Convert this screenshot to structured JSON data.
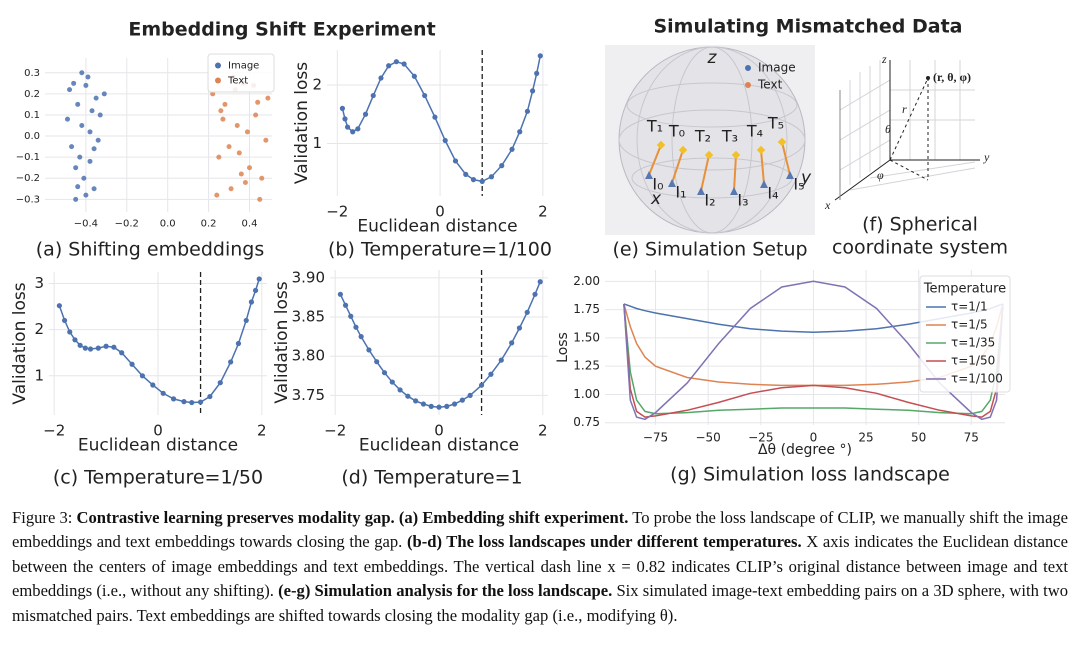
{
  "titles": [
    "Embedding Shift Experiment",
    "Simulating Mismatched Data"
  ],
  "chart_data": [
    {
      "type": "scatter",
      "caption": "(a) Shifting embeddings",
      "legend": "upper right",
      "grid": true,
      "xlim": [
        -0.6,
        0.51
      ],
      "ylim": [
        -0.36,
        0.37
      ],
      "xticks": [
        {
          "value": -0.4,
          "label": "−0.4"
        },
        {
          "value": -0.2,
          "label": "−0.2"
        },
        {
          "value": 0,
          "label": "0.0"
        },
        0.2,
        0.4
      ],
      "yticks": [
        0.3,
        0.2,
        0.1,
        {
          "value": 0,
          "label": "0.0"
        },
        {
          "value": -0.1,
          "label": "−0.1"
        },
        {
          "value": -0.2,
          "label": "−0.2"
        },
        {
          "value": -0.3,
          "label": "−0.3"
        }
      ],
      "series": [
        {
          "name": "Image",
          "color": "#4c72b0",
          "x": [
            -0.48,
            -0.45,
            -0.42,
            -0.39,
            -0.36,
            -0.33,
            -0.47,
            -0.44,
            -0.41,
            -0.38,
            -0.35,
            -0.46,
            -0.43,
            -0.4,
            -0.37,
            -0.34,
            -0.49,
            -0.42,
            -0.38,
            -0.31,
            -0.44,
            -0.4,
            -0.36,
            -0.45
          ],
          "values": [
            0.22,
            -0.15,
            0.05,
            0.28,
            -0.25,
            0.1,
            -0.05,
            0.15,
            -0.2,
            0.02,
            0.18,
            0.25,
            -0.1,
            -0.28,
            0.12,
            -0.02,
            0.08,
            0.3,
            -0.12,
            0.2,
            -0.24,
            0.24,
            -0.06,
            -0.3
          ]
        },
        {
          "name": "Text",
          "color": "#dd8452",
          "x": [
            0.22,
            0.25,
            0.28,
            0.31,
            0.34,
            0.37,
            0.4,
            0.43,
            0.46,
            0.49,
            0.24,
            0.27,
            0.3,
            0.33,
            0.36,
            0.39,
            0.42,
            0.45,
            0.48,
            0.26,
            0.32,
            0.38,
            0.44,
            0.35
          ],
          "values": [
            0.2,
            -0.1,
            0.15,
            -0.25,
            0.05,
            0.25,
            -0.15,
            0.1,
            -0.2,
            0.18,
            -0.28,
            0.08,
            -0.05,
            0.22,
            -0.18,
            0.02,
            0.24,
            -0.3,
            -0.02,
            0.12,
            0.28,
            -0.22,
            0.16,
            -0.08
          ]
        }
      ]
    },
    {
      "type": "line",
      "caption": "(b) Temperature=1/100",
      "markers": true,
      "color": "#4c72b0",
      "grid": true,
      "xlabel": "Euclidean distance",
      "ylabel": "Validation loss",
      "vline": 0.82,
      "xlim": [
        -2.2,
        2.1
      ],
      "ylim": [
        0.1,
        2.6
      ],
      "xticks": [
        {
          "value": -2,
          "label": "−2"
        },
        0,
        2
      ],
      "yticks": [
        1,
        2
      ],
      "x": [
        -1.9,
        -1.85,
        -1.8,
        -1.7,
        -1.6,
        -1.45,
        -1.3,
        -1.15,
        -1.0,
        -0.85,
        -0.7,
        -0.5,
        -0.3,
        -0.1,
        0.1,
        0.3,
        0.5,
        0.65,
        0.82,
        1.0,
        1.2,
        1.4,
        1.55,
        1.7,
        1.8,
        1.88,
        1.95
      ],
      "values": [
        1.6,
        1.42,
        1.28,
        1.2,
        1.25,
        1.5,
        1.82,
        2.12,
        2.33,
        2.4,
        2.36,
        2.15,
        1.82,
        1.45,
        1.05,
        0.7,
        0.47,
        0.38,
        0.35,
        0.43,
        0.62,
        0.9,
        1.2,
        1.55,
        1.9,
        2.2,
        2.5
      ]
    },
    {
      "type": "line",
      "caption": "(c) Temperature=1/50",
      "markers": true,
      "color": "#4c72b0",
      "grid": true,
      "xlabel": "Euclidean distance",
      "ylabel": "Validation loss",
      "vline": 0.82,
      "xlim": [
        -2.1,
        2.1
      ],
      "ylim": [
        0.15,
        3.25
      ],
      "xticks": [
        {
          "value": -2,
          "label": "−2"
        },
        0,
        2
      ],
      "yticks": [
        1,
        2,
        3
      ],
      "x": [
        -1.9,
        -1.8,
        -1.7,
        -1.6,
        -1.5,
        -1.4,
        -1.3,
        -1.15,
        -1.0,
        -0.85,
        -0.7,
        -0.5,
        -0.3,
        -0.1,
        0.1,
        0.3,
        0.5,
        0.65,
        0.82,
        1.0,
        1.2,
        1.4,
        1.55,
        1.7,
        1.8,
        1.88,
        1.95
      ],
      "values": [
        2.52,
        2.2,
        1.95,
        1.78,
        1.66,
        1.6,
        1.58,
        1.6,
        1.64,
        1.62,
        1.5,
        1.25,
        1.0,
        0.8,
        0.62,
        0.5,
        0.44,
        0.42,
        0.43,
        0.55,
        0.85,
        1.3,
        1.7,
        2.2,
        2.6,
        2.85,
        3.1
      ]
    },
    {
      "type": "line",
      "caption": "(d) Temperature=1",
      "markers": true,
      "color": "#4c72b0",
      "grid": true,
      "xlabel": "Euclidean distance",
      "ylabel": "Validation loss",
      "vline": 0.82,
      "xlim": [
        -2.1,
        2.1
      ],
      "ylim": [
        3.725,
        3.91
      ],
      "xticks": [
        {
          "value": -2,
          "label": "−2"
        },
        0,
        2
      ],
      "yticks": [
        3.75,
        {
          "value": 3.8,
          "label": "3.80"
        },
        3.85,
        {
          "value": 3.9,
          "label": "3.90"
        }
      ],
      "x": [
        -1.9,
        -1.8,
        -1.7,
        -1.6,
        -1.5,
        -1.35,
        -1.2,
        -1.05,
        -0.9,
        -0.75,
        -0.6,
        -0.45,
        -0.3,
        -0.15,
        0.0,
        0.15,
        0.3,
        0.45,
        0.6,
        0.82,
        1.0,
        1.2,
        1.4,
        1.55,
        1.7,
        1.85,
        1.95
      ],
      "values": [
        3.879,
        3.865,
        3.851,
        3.837,
        3.825,
        3.808,
        3.793,
        3.779,
        3.767,
        3.757,
        3.749,
        3.743,
        3.739,
        3.736,
        3.735,
        3.736,
        3.739,
        3.744,
        3.75,
        3.763,
        3.777,
        3.795,
        3.817,
        3.836,
        3.856,
        3.879,
        3.895
      ]
    },
    {
      "type": "line",
      "caption": "(g) Simulation loss landscape",
      "markers": false,
      "grid": true,
      "xlabel": "Δθ (degree °)",
      "ylabel": "Loss",
      "legend": "upper right",
      "legend_title": "Temperature",
      "xlim": [
        -99,
        91
      ],
      "ylim": [
        0.73,
        2.1
      ],
      "xticks": [
        {
          "value": -75,
          "label": "−75"
        },
        {
          "value": -50,
          "label": "−50"
        },
        {
          "value": -25,
          "label": "−25"
        },
        0,
        25,
        50,
        75
      ],
      "yticks": [
        0.75,
        {
          "value": 1,
          "label": "1.00"
        },
        1.25,
        {
          "value": 1.5,
          "label": "1.50"
        },
        1.75,
        {
          "value": 2,
          "label": "2.00"
        }
      ],
      "x": [
        -90,
        -87,
        -84,
        -80,
        -75,
        -60,
        -45,
        -30,
        -15,
        0,
        15,
        30,
        45,
        60,
        75,
        80,
        84,
        87,
        90
      ],
      "series": [
        {
          "name": "τ=1/1",
          "color": "#4c72b0",
          "values": [
            1.8,
            1.78,
            1.76,
            1.74,
            1.72,
            1.67,
            1.62,
            1.58,
            1.56,
            1.55,
            1.56,
            1.58,
            1.62,
            1.67,
            1.72,
            1.74,
            1.76,
            1.78,
            1.8
          ]
        },
        {
          "name": "τ=1/5",
          "color": "#dd8452",
          "values": [
            1.8,
            1.6,
            1.45,
            1.33,
            1.25,
            1.15,
            1.11,
            1.09,
            1.08,
            1.08,
            1.08,
            1.09,
            1.11,
            1.15,
            1.25,
            1.33,
            1.45,
            1.6,
            1.8
          ]
        },
        {
          "name": "τ=1/35",
          "color": "#55a868",
          "values": [
            1.8,
            1.2,
            0.95,
            0.85,
            0.83,
            0.84,
            0.86,
            0.87,
            0.88,
            0.88,
            0.88,
            0.87,
            0.86,
            0.84,
            0.83,
            0.85,
            0.95,
            1.2,
            1.8
          ]
        },
        {
          "name": "τ=1/50",
          "color": "#c44e52",
          "values": [
            1.8,
            1.05,
            0.85,
            0.8,
            0.81,
            0.86,
            0.93,
            1.01,
            1.06,
            1.08,
            1.06,
            1.01,
            0.93,
            0.86,
            0.81,
            0.8,
            0.85,
            1.05,
            1.8
          ]
        },
        {
          "name": "τ=1/100",
          "color": "#8172b3",
          "values": [
            1.8,
            0.95,
            0.8,
            0.78,
            0.84,
            1.1,
            1.45,
            1.76,
            1.95,
            2.0,
            1.95,
            1.76,
            1.45,
            1.1,
            0.84,
            0.78,
            0.8,
            0.95,
            1.8
          ]
        }
      ]
    }
  ],
  "setup": {
    "caption": "(e) Simulation Setup",
    "axes": [
      "z",
      "y",
      "x"
    ],
    "legend": [
      "Image",
      "Text"
    ],
    "text_labels": [
      "T₁",
      "T₀",
      "T₂",
      "T₃",
      "T₄",
      "T₅"
    ],
    "image_labels": [
      "I₀",
      "I₁",
      "I₂",
      "I₃",
      "I₄",
      "I₅"
    ]
  },
  "spherical": {
    "caption": [
      "(f) Spherical",
      "coordinate system"
    ],
    "labels": [
      "z",
      "(r, θ, φ)",
      "r",
      "θ",
      "y",
      "φ",
      "x"
    ]
  },
  "caption": {
    "parts": [
      {
        "text": "Figure 3: ",
        "bold": false
      },
      {
        "text": "Contrastive learning preserves modality gap. (a) Embedding shift experiment.",
        "bold": true
      },
      {
        "text": " To probe the loss landscape of CLIP, we manually shift the image embeddings and text embeddings towards closing the gap. ",
        "bold": false
      },
      {
        "text": "(b-d) The loss landscapes under different temperatures.",
        "bold": true
      },
      {
        "text": " X axis indicates the Euclidean distance between the centers of image embeddings and text embeddings. The vertical dash line x = 0.82 indicates CLIP’s original distance between image and text embeddings (i.e., without any shifting). ",
        "bold": false
      },
      {
        "text": "(e-g) Simulation analysis for the loss landscape.",
        "bold": true
      },
      {
        "text": " Six simulated image-text embedding pairs on a 3D sphere, with two mismatched pairs. Text embeddings are shifted towards closing the modality gap (i.e., modifying θ).",
        "bold": false
      }
    ]
  }
}
